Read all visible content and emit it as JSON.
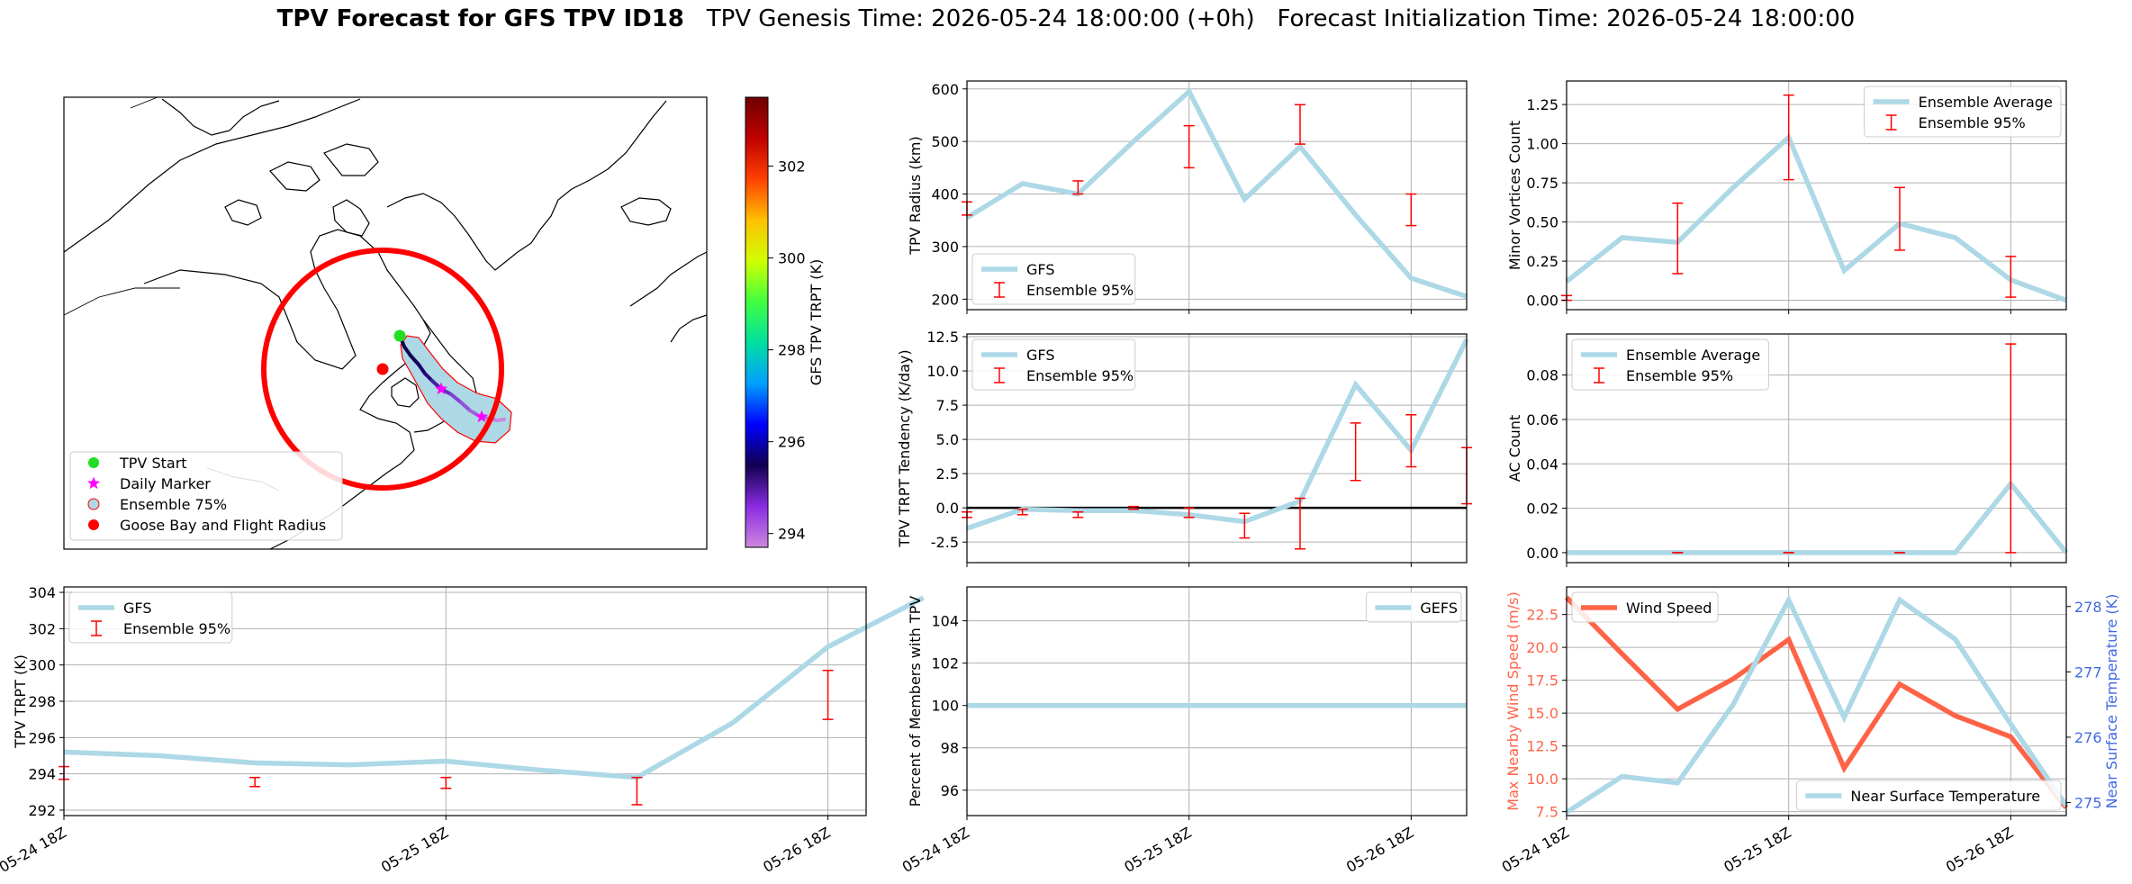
{
  "title": {
    "main": "TPV Forecast for GFS TPV ID18",
    "genesis": "TPV Genesis Time: 2026-05-24 18:00:00 (+0h)",
    "init": "Forecast Initialization Time: 2026-05-24 18:00:00"
  },
  "map": {
    "colorbar": {
      "label": "GFS TPV TRPT (K)",
      "ticks": [
        "294",
        "296",
        "298",
        "300",
        "302"
      ],
      "range": [
        293.7,
        303.5
      ],
      "colormap": [
        "#cc88dd",
        "#8a2be2",
        "#120050",
        "#0000ff",
        "#00a0ff",
        "#00e0a0",
        "#40ff40",
        "#d0ff00",
        "#ffc000",
        "#ff4000",
        "#c00000",
        "#700000"
      ]
    },
    "legend": [
      {
        "label": "TPV Start",
        "color": "#22dd22",
        "marker": "circle"
      },
      {
        "label": "Daily Marker",
        "color": "#ff00ff",
        "marker": "star"
      },
      {
        "label": "Ensemble 75%",
        "color": "#add8e6",
        "marker": "circle-outline"
      },
      {
        "label": "Goose Bay and Flight Radius",
        "color": "#ff0000",
        "marker": "circle"
      }
    ]
  },
  "chart_data": [
    {
      "id": "tpv_trpt",
      "type": "line",
      "ylabel": "TPV TRPT (K)",
      "ylim": [
        291.7,
        304.3
      ],
      "yticks": [
        292,
        294,
        296,
        298,
        300,
        302,
        304
      ],
      "xlim": [
        0,
        8.4
      ],
      "xticks": [
        {
          "x": 0,
          "label": "05-24 18Z"
        },
        {
          "x": 4,
          "label": "05-25 18Z"
        },
        {
          "x": 8,
          "label": "05-26 18Z"
        }
      ],
      "series": [
        {
          "name": "GFS",
          "type": "line",
          "color": "#add8e6",
          "x": [
            0,
            1,
            2,
            3,
            4,
            5,
            6,
            7,
            8,
            9
          ],
          "y": [
            295.2,
            295.0,
            294.6,
            294.5,
            294.7,
            294.2,
            293.8,
            296.8,
            301.0,
            303.7
          ]
        }
      ],
      "errorbars": {
        "name": "Ensemble 95%",
        "color": "#ff0000",
        "items": [
          {
            "x": 0,
            "lo": 293.7,
            "hi": 294.4
          },
          {
            "x": 2,
            "lo": 293.3,
            "hi": 293.8
          },
          {
            "x": 4,
            "lo": 293.2,
            "hi": 293.8
          },
          {
            "x": 6,
            "lo": 292.3,
            "hi": 293.8
          },
          {
            "x": 8,
            "lo": 297.0,
            "hi": 299.7
          }
        ]
      },
      "legend": "upper-left",
      "grid": true
    },
    {
      "id": "tpv_radius",
      "type": "line",
      "ylabel": "TPV Radius (km)",
      "ylim": [
        180,
        615
      ],
      "yticks": [
        200,
        300,
        400,
        500,
        600
      ],
      "xlim": [
        0,
        9
      ],
      "xticks": [
        {
          "x": 0,
          "label": ""
        },
        {
          "x": 4,
          "label": ""
        },
        {
          "x": 8,
          "label": ""
        }
      ],
      "series": [
        {
          "name": "GFS",
          "type": "line",
          "color": "#add8e6",
          "x": [
            0,
            1,
            2,
            3,
            4,
            5,
            6,
            7,
            8,
            9
          ],
          "y": [
            355,
            420,
            400,
            500,
            595,
            390,
            490,
            360,
            240,
            205
          ]
        }
      ],
      "errorbars": {
        "name": "Ensemble 95%",
        "color": "#ff0000",
        "items": [
          {
            "x": 0,
            "lo": 360,
            "hi": 385
          },
          {
            "x": 2,
            "lo": 400,
            "hi": 425
          },
          {
            "x": 4,
            "lo": 450,
            "hi": 530
          },
          {
            "x": 6,
            "lo": 495,
            "hi": 570
          },
          {
            "x": 8,
            "lo": 340,
            "hi": 400
          }
        ]
      },
      "legend": "lower-left",
      "grid": true
    },
    {
      "id": "trpt_tendency",
      "type": "line",
      "ylabel": "TPV TRPT Tendency (K/day)",
      "ylim": [
        -4.0,
        12.7
      ],
      "yticks": [
        -2.5,
        0.0,
        2.5,
        5.0,
        7.5,
        10.0,
        12.5
      ],
      "xlim": [
        0,
        9
      ],
      "xticks": [
        {
          "x": 0,
          "label": ""
        },
        {
          "x": 4,
          "label": ""
        },
        {
          "x": 8,
          "label": ""
        }
      ],
      "zero_line": true,
      "series": [
        {
          "name": "GFS",
          "type": "line",
          "color": "#add8e6",
          "x": [
            0,
            1,
            2,
            3,
            4,
            5,
            6,
            7,
            8,
            9
          ],
          "y": [
            -1.5,
            -0.1,
            -0.2,
            -0.2,
            -0.5,
            -1.0,
            0.5,
            9.0,
            4.2,
            12.3
          ]
        }
      ],
      "errorbars": {
        "name": "Ensemble 95%",
        "color": "#ff0000",
        "items": [
          {
            "x": 0,
            "lo": -0.7,
            "hi": -0.3
          },
          {
            "x": 1,
            "lo": -0.5,
            "hi": -0.1
          },
          {
            "x": 2,
            "lo": -0.7,
            "hi": -0.3
          },
          {
            "x": 3,
            "lo": -0.1,
            "hi": 0.1
          },
          {
            "x": 4,
            "lo": -0.7,
            "hi": 0.0
          },
          {
            "x": 5,
            "lo": -2.2,
            "hi": -0.4
          },
          {
            "x": 6,
            "lo": -3.0,
            "hi": 0.7
          },
          {
            "x": 7,
            "lo": 2.0,
            "hi": 6.2
          },
          {
            "x": 8,
            "lo": 3.0,
            "hi": 6.8
          },
          {
            "x": 9,
            "lo": 0.3,
            "hi": 4.4
          }
        ]
      },
      "legend": "upper-left",
      "grid": true
    },
    {
      "id": "percent_members",
      "type": "line",
      "ylabel": "Percent of Members with TPV",
      "ylim": [
        94.8,
        105.6
      ],
      "yticks": [
        96,
        98,
        100,
        102,
        104
      ],
      "xlim": [
        0,
        9
      ],
      "xticks": [
        {
          "x": 0,
          "label": "05-24 18Z"
        },
        {
          "x": 4,
          "label": "05-25 18Z"
        },
        {
          "x": 8,
          "label": "05-26 18Z"
        }
      ],
      "series": [
        {
          "name": "GEFS",
          "type": "line",
          "color": "#add8e6",
          "x": [
            0,
            1,
            2,
            3,
            4,
            5,
            6,
            7,
            8,
            9
          ],
          "y": [
            100,
            100,
            100,
            100,
            100,
            100,
            100,
            100,
            100,
            100
          ]
        }
      ],
      "legend": "upper-right",
      "grid": true
    },
    {
      "id": "minor_vortices",
      "type": "line",
      "ylabel": "Minor Vortices Count",
      "ylim": [
        -0.06,
        1.4
      ],
      "yticks": [
        0.0,
        0.25,
        0.5,
        0.75,
        1.0,
        1.25
      ],
      "xlim": [
        0,
        9
      ],
      "xticks": [
        {
          "x": 0,
          "label": ""
        },
        {
          "x": 4,
          "label": ""
        },
        {
          "x": 8,
          "label": ""
        }
      ],
      "series": [
        {
          "name": "Ensemble Average",
          "type": "line",
          "color": "#add8e6",
          "x": [
            0,
            1,
            2,
            3,
            4,
            5,
            6,
            7,
            8,
            9
          ],
          "y": [
            0.12,
            0.4,
            0.37,
            0.72,
            1.04,
            0.19,
            0.49,
            0.4,
            0.13,
            0.0
          ]
        }
      ],
      "errorbars": {
        "name": "Ensemble 95%",
        "color": "#ff0000",
        "items": [
          {
            "x": 0,
            "lo": 0.0,
            "hi": 0.03
          },
          {
            "x": 2,
            "lo": 0.17,
            "hi": 0.62
          },
          {
            "x": 4,
            "lo": 0.77,
            "hi": 1.31
          },
          {
            "x": 6,
            "lo": 0.32,
            "hi": 0.72
          },
          {
            "x": 8,
            "lo": 0.02,
            "hi": 0.28
          }
        ]
      },
      "legend": "upper-right",
      "grid": true
    },
    {
      "id": "ac_count",
      "type": "line",
      "ylabel": "AC Count",
      "ylim": [
        -0.0045,
        0.0985
      ],
      "yticks": [
        0.0,
        0.02,
        0.04,
        0.06,
        0.08
      ],
      "xlim": [
        0,
        9
      ],
      "xticks": [
        {
          "x": 0,
          "label": ""
        },
        {
          "x": 4,
          "label": ""
        },
        {
          "x": 8,
          "label": ""
        }
      ],
      "series": [
        {
          "name": "Ensemble Average",
          "type": "line",
          "color": "#add8e6",
          "x": [
            0,
            1,
            2,
            3,
            4,
            5,
            6,
            7,
            8,
            9
          ],
          "y": [
            0,
            0,
            0,
            0,
            0,
            0,
            0,
            0,
            0.031,
            0
          ]
        }
      ],
      "errorbars": {
        "name": "Ensemble 95%",
        "color": "#ff0000",
        "items": [
          {
            "x": 2,
            "lo": 0,
            "hi": 0
          },
          {
            "x": 4,
            "lo": 0,
            "hi": 0
          },
          {
            "x": 6,
            "lo": 0,
            "hi": 0
          },
          {
            "x": 8,
            "lo": 0,
            "hi": 0.094
          }
        ]
      },
      "legend": "upper-left",
      "grid": true
    },
    {
      "id": "wind_temp",
      "type": "line",
      "ylabel": "Max Nearby Wind Speed (m/s)",
      "ylabel_color": "#ff6347",
      "ylim": [
        7.2,
        24.6
      ],
      "yticks": [
        7.5,
        10.0,
        12.5,
        15.0,
        17.5,
        20.0,
        22.5
      ],
      "y2label": "Near Surface Temperature (K)",
      "y2label_color": "#4169e1",
      "y2lim": [
        274.8,
        278.3
      ],
      "y2ticks": [
        275,
        276,
        277,
        278
      ],
      "xlim": [
        0,
        9
      ],
      "xticks": [
        {
          "x": 0,
          "label": "05-24 18Z"
        },
        {
          "x": 4,
          "label": "05-25 18Z"
        },
        {
          "x": 8,
          "label": "05-26 18Z"
        }
      ],
      "series": [
        {
          "name": "Wind Speed",
          "type": "line",
          "axis": "left",
          "color": "#ff6347",
          "x": [
            0,
            1,
            2,
            3,
            4,
            5,
            6,
            7,
            8,
            9
          ],
          "y": [
            23.8,
            19.5,
            15.3,
            17.6,
            20.6,
            10.8,
            17.2,
            14.8,
            13.2,
            7.8
          ]
        },
        {
          "name": "Near Surface Temperature",
          "type": "line",
          "axis": "right",
          "color": "#add8e6",
          "x": [
            0,
            1,
            2,
            3,
            4,
            5,
            6,
            7,
            8,
            9
          ],
          "y": [
            274.85,
            275.4,
            275.3,
            276.5,
            278.1,
            276.3,
            278.1,
            277.5,
            276.2,
            274.95
          ]
        }
      ],
      "legend": "upper-left / lower-right",
      "grid": true
    }
  ]
}
